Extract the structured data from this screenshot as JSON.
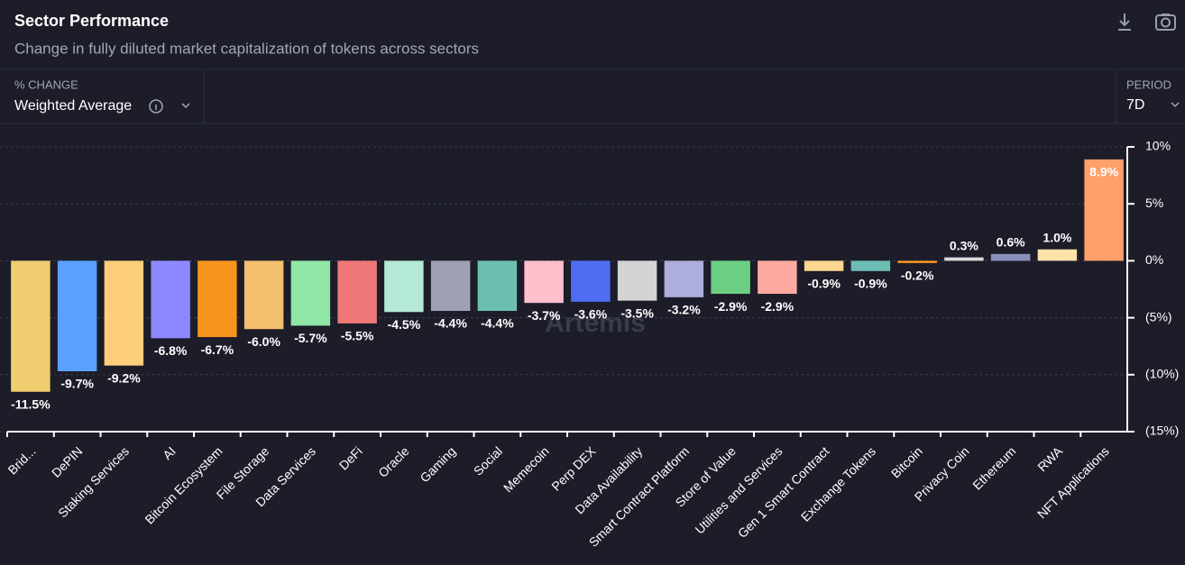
{
  "header": {
    "title": "Sector Performance",
    "subtitle": "Change in fully diluted market capitalization of tokens across sectors"
  },
  "controls": {
    "change_label": "% CHANGE",
    "change_value": "Weighted Average",
    "period_label": "PERIOD",
    "period_value": "7D"
  },
  "watermark": "Artemis",
  "chart_data": {
    "type": "bar",
    "categories": [
      "Brid...",
      "DePIN",
      "Staking Services",
      "AI",
      "Bitcoin Ecosystem",
      "File Storage",
      "Data Services",
      "DeFi",
      "Oracle",
      "Gaming",
      "Social",
      "Memecoin",
      "Perp DEX",
      "Data Availability",
      "Smart Contract Platform",
      "Store of Value",
      "Utilities and Services",
      "Gen 1 Smart Contract",
      "Exchange Tokens",
      "Bitcoin",
      "Privacy Coin",
      "Ethereum",
      "RWA",
      "NFT Applications"
    ],
    "values": [
      -11.5,
      -9.7,
      -9.2,
      -6.8,
      -6.7,
      -6.0,
      -5.7,
      -5.5,
      -4.5,
      -4.4,
      -4.4,
      -3.7,
      -3.6,
      -3.5,
      -3.2,
      -2.9,
      -2.9,
      -0.9,
      -0.9,
      -0.2,
      0.3,
      0.6,
      1.0,
      8.9
    ],
    "value_labels": [
      "-11.5%",
      "-9.7%",
      "-9.2%",
      "-6.8%",
      "-6.7%",
      "-6.0%",
      "-5.7%",
      "-5.5%",
      "-4.5%",
      "-4.4%",
      "-4.4%",
      "-3.7%",
      "-3.6%",
      "-3.5%",
      "-3.2%",
      "-2.9%",
      "-2.9%",
      "-0.9%",
      "-0.9%",
      "-0.2%",
      "0.3%",
      "0.6%",
      "1.0%",
      "8.9%"
    ],
    "colors": [
      "#f0cd6e",
      "#5aa0ff",
      "#fecf7a",
      "#8c88ff",
      "#f7941d",
      "#f4c06f",
      "#8fe6a6",
      "#f07878",
      "#b4ead6",
      "#9fa0b4",
      "#6cbfb0",
      "#ffc0cc",
      "#4f6cf2",
      "#d4d4d4",
      "#aeaedc",
      "#6ccf84",
      "#ffaaa0",
      "#fcd58e",
      "#6cbcb4",
      "#f7941d",
      "#d9d9d9",
      "#8a8fbd",
      "#fde3a8",
      "#ffa06a"
    ],
    "ylim": [
      -15,
      10
    ],
    "yticks": [
      {
        "value": 10,
        "label": "10%"
      },
      {
        "value": 5,
        "label": "5%"
      },
      {
        "value": 0,
        "label": "0%"
      },
      {
        "value": -5,
        "label": "(5%)"
      },
      {
        "value": -10,
        "label": "(10%)"
      },
      {
        "value": -15,
        "label": "(15%)"
      }
    ],
    "grid": true
  }
}
